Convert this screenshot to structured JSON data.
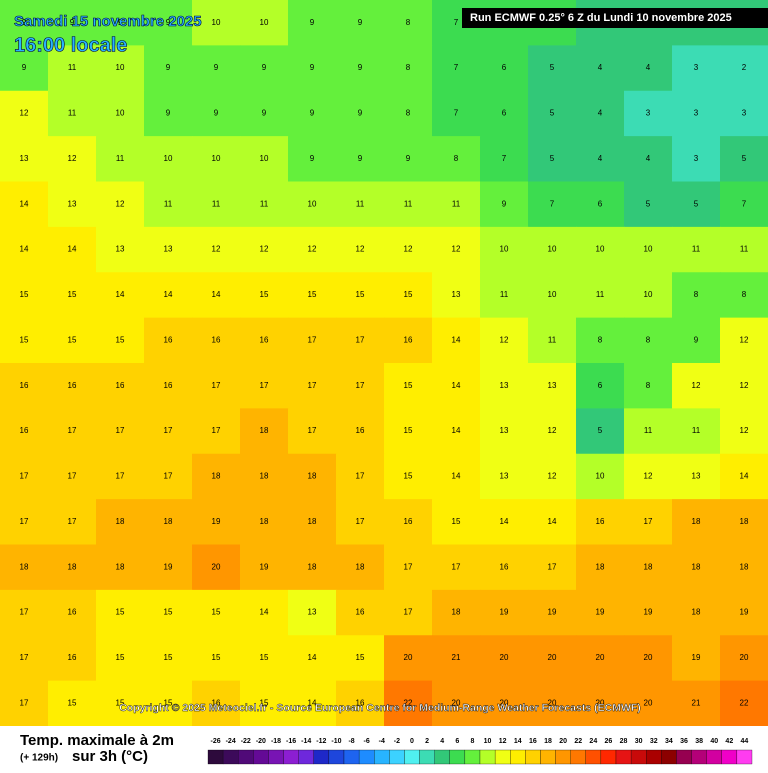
{
  "header": {
    "date": "Samedi 15 novembre 2025",
    "time": "16:00 locale",
    "run": "Run ECMWF 0.25° 6 Z du Lundi 10 novembre 2025"
  },
  "copyright": "Copyright © 2025 Meteociel.fr - Source European Centre for Medium-Range Weather Forecasts (ECMWF)",
  "footer": {
    "title": "Temp. maximale à 2m",
    "lead": "(+ 129h)",
    "unit": "sur 3h (°C)"
  },
  "legend": {
    "ticks": [
      -26,
      -24,
      -22,
      -20,
      -18,
      -16,
      -14,
      -12,
      -10,
      -8,
      -6,
      -4,
      -2,
      0,
      2,
      4,
      6,
      8,
      10,
      12,
      14,
      16,
      18,
      20,
      22,
      24,
      26,
      28,
      30,
      32,
      34,
      36,
      38,
      40,
      42,
      44
    ],
    "colors": [
      "#2d0a3c",
      "#3c0a5a",
      "#500a78",
      "#640a96",
      "#7814b4",
      "#8c1ed2",
      "#6e28dc",
      "#1e28c8",
      "#1e46dc",
      "#1e64f0",
      "#1e8cff",
      "#28b4ff",
      "#3cd2ff",
      "#50f0f0",
      "#3cdcb4",
      "#32c878",
      "#3cdc50",
      "#64f03c",
      "#b4ff28",
      "#f0ff14",
      "#ffee00",
      "#ffd200",
      "#ffb400",
      "#ff9600",
      "#ff7800",
      "#ff5000",
      "#ff2800",
      "#e61414",
      "#c80a0a",
      "#aa0000",
      "#8c0000",
      "#960050",
      "#b40078",
      "#d200a0",
      "#f000c8",
      "#ff3cf0"
    ]
  },
  "grid": [
    [
      9,
      9,
      9,
      9,
      10,
      10,
      9,
      9,
      8,
      7,
      6,
      6,
      5,
      5,
      5,
      5
    ],
    [
      9,
      11,
      10,
      9,
      9,
      9,
      9,
      9,
      8,
      7,
      6,
      5,
      4,
      4,
      3,
      2
    ],
    [
      12,
      11,
      10,
      9,
      9,
      9,
      9,
      9,
      8,
      7,
      6,
      5,
      4,
      3,
      3,
      3
    ],
    [
      13,
      12,
      11,
      10,
      10,
      10,
      9,
      9,
      9,
      8,
      7,
      5,
      4,
      4,
      3,
      5
    ],
    [
      14,
      13,
      12,
      11,
      11,
      11,
      10,
      11,
      11,
      11,
      9,
      7,
      6,
      5,
      5,
      7
    ],
    [
      14,
      14,
      13,
      13,
      12,
      12,
      12,
      12,
      12,
      12,
      10,
      10,
      10,
      10,
      11,
      11
    ],
    [
      15,
      15,
      14,
      14,
      14,
      15,
      15,
      15,
      15,
      13,
      11,
      10,
      11,
      10,
      8,
      8
    ],
    [
      15,
      15,
      15,
      16,
      16,
      16,
      17,
      17,
      16,
      14,
      12,
      11,
      8,
      8,
      9,
      12
    ],
    [
      16,
      16,
      16,
      16,
      17,
      17,
      17,
      17,
      15,
      14,
      13,
      13,
      6,
      8,
      12,
      12
    ],
    [
      16,
      17,
      17,
      17,
      17,
      18,
      17,
      16,
      15,
      14,
      13,
      12,
      5,
      11,
      11,
      12
    ],
    [
      17,
      17,
      17,
      17,
      18,
      18,
      18,
      17,
      15,
      14,
      13,
      12,
      10,
      12,
      13,
      14
    ],
    [
      17,
      17,
      18,
      18,
      19,
      18,
      18,
      17,
      16,
      15,
      14,
      14,
      16,
      17,
      18,
      18
    ],
    [
      18,
      18,
      18,
      19,
      20,
      19,
      18,
      18,
      17,
      17,
      16,
      17,
      18,
      18,
      18,
      18
    ],
    [
      17,
      16,
      15,
      15,
      15,
      14,
      13,
      16,
      17,
      18,
      19,
      19,
      19,
      19,
      18,
      19
    ],
    [
      17,
      16,
      15,
      15,
      15,
      15,
      14,
      15,
      20,
      21,
      20,
      20,
      20,
      20,
      19,
      20
    ],
    [
      17,
      15,
      15,
      15,
      16,
      15,
      14,
      16,
      22,
      20,
      20,
      20,
      20,
      20,
      21,
      22
    ]
  ]
}
